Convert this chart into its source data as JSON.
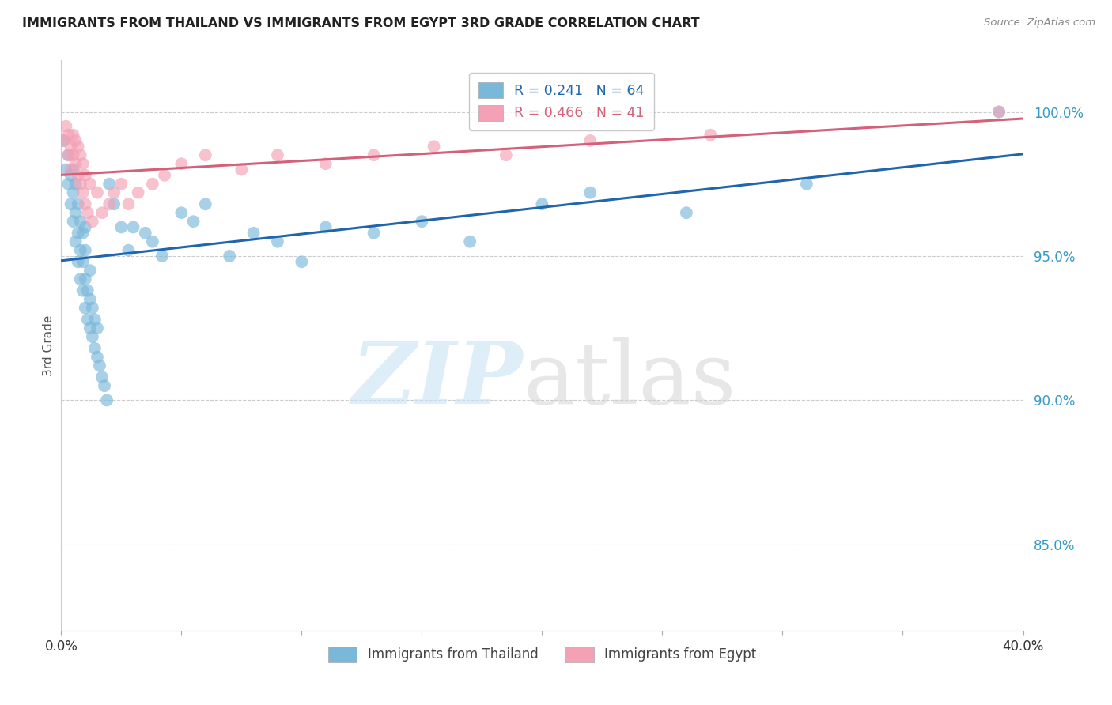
{
  "title": "IMMIGRANTS FROM THAILAND VS IMMIGRANTS FROM EGYPT 3RD GRADE CORRELATION CHART",
  "source": "Source: ZipAtlas.com",
  "ylabel": "3rd Grade",
  "y_ticks": [
    0.85,
    0.9,
    0.95,
    1.0
  ],
  "y_tick_labels": [
    "85.0%",
    "90.0%",
    "95.0%",
    "100.0%"
  ],
  "x_range": [
    0.0,
    0.4
  ],
  "y_range": [
    0.82,
    1.018
  ],
  "legend_blue": "R = 0.241   N = 64",
  "legend_pink": "R = 0.466   N = 41",
  "thailand_color": "#7ab8d9",
  "egypt_color": "#f4a0b5",
  "thailand_line_color": "#2166ac",
  "egypt_line_color": "#d4607a",
  "thailand_x": [
    0.001,
    0.002,
    0.003,
    0.003,
    0.004,
    0.004,
    0.005,
    0.005,
    0.005,
    0.006,
    0.006,
    0.006,
    0.007,
    0.007,
    0.007,
    0.008,
    0.008,
    0.008,
    0.009,
    0.009,
    0.009,
    0.01,
    0.01,
    0.01,
    0.01,
    0.011,
    0.011,
    0.012,
    0.012,
    0.012,
    0.013,
    0.013,
    0.014,
    0.014,
    0.015,
    0.015,
    0.016,
    0.017,
    0.018,
    0.019,
    0.02,
    0.022,
    0.025,
    0.028,
    0.03,
    0.035,
    0.038,
    0.042,
    0.05,
    0.055,
    0.06,
    0.07,
    0.08,
    0.09,
    0.1,
    0.11,
    0.13,
    0.15,
    0.17,
    0.2,
    0.22,
    0.26,
    0.31,
    0.39
  ],
  "thailand_y": [
    0.99,
    0.98,
    0.975,
    0.985,
    0.968,
    0.978,
    0.962,
    0.972,
    0.98,
    0.955,
    0.965,
    0.975,
    0.948,
    0.958,
    0.968,
    0.942,
    0.952,
    0.962,
    0.938,
    0.948,
    0.958,
    0.932,
    0.942,
    0.952,
    0.96,
    0.928,
    0.938,
    0.925,
    0.935,
    0.945,
    0.922,
    0.932,
    0.918,
    0.928,
    0.915,
    0.925,
    0.912,
    0.908,
    0.905,
    0.9,
    0.975,
    0.968,
    0.96,
    0.952,
    0.96,
    0.958,
    0.955,
    0.95,
    0.965,
    0.962,
    0.968,
    0.95,
    0.958,
    0.955,
    0.948,
    0.96,
    0.958,
    0.962,
    0.955,
    0.968,
    0.972,
    0.965,
    0.975,
    1.0
  ],
  "egypt_x": [
    0.001,
    0.002,
    0.003,
    0.003,
    0.004,
    0.004,
    0.005,
    0.005,
    0.006,
    0.006,
    0.007,
    0.007,
    0.008,
    0.008,
    0.009,
    0.009,
    0.01,
    0.01,
    0.011,
    0.012,
    0.013,
    0.015,
    0.017,
    0.02,
    0.022,
    0.025,
    0.028,
    0.032,
    0.038,
    0.043,
    0.05,
    0.06,
    0.075,
    0.09,
    0.11,
    0.13,
    0.155,
    0.185,
    0.22,
    0.27,
    0.39
  ],
  "egypt_y": [
    0.99,
    0.995,
    0.992,
    0.985,
    0.988,
    0.98,
    0.985,
    0.992,
    0.982,
    0.99,
    0.978,
    0.988,
    0.975,
    0.985,
    0.972,
    0.982,
    0.968,
    0.978,
    0.965,
    0.975,
    0.962,
    0.972,
    0.965,
    0.968,
    0.972,
    0.975,
    0.968,
    0.972,
    0.975,
    0.978,
    0.982,
    0.985,
    0.98,
    0.985,
    0.982,
    0.985,
    0.988,
    0.985,
    0.99,
    0.992,
    1.0
  ]
}
